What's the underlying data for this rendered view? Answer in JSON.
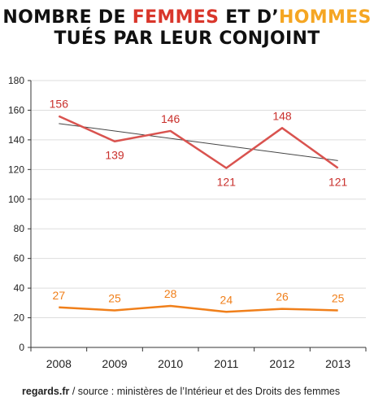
{
  "title": {
    "line1_pre": "NOMBRE DE ",
    "line1_women": "FEMMES",
    "line1_mid": " ET D’",
    "line1_men": "HOMMES",
    "line2": "TUÉS PAR LEUR CONJOINT"
  },
  "colors": {
    "women": "#d9534f",
    "women_label": "#c9302c",
    "men": "#f07f1a",
    "trend": "#444444",
    "axis": "#333333",
    "grid": "#dddddd"
  },
  "chart_data": {
    "type": "line",
    "title": "NOMBRE DE FEMMES ET D’HOMMES TUÉS PAR LEUR CONJOINT",
    "xlabel": "",
    "ylabel": "",
    "categories": [
      "2008",
      "2009",
      "2010",
      "2011",
      "2012",
      "2013"
    ],
    "ylim": [
      0,
      180
    ],
    "yticks": [
      0,
      20,
      40,
      60,
      80,
      100,
      120,
      140,
      160,
      180
    ],
    "grid": true,
    "series": [
      {
        "key": "women",
        "values": [
          156,
          139,
          146,
          121,
          148,
          121
        ]
      },
      {
        "key": "men",
        "values": [
          27,
          25,
          28,
          24,
          26,
          25
        ]
      }
    ],
    "trendline": {
      "series": "women",
      "start": 151,
      "end": 126
    }
  },
  "footer": {
    "site": "regards.fr",
    "source": " / source : ministères de l’Intérieur et des Droits des femmes"
  }
}
